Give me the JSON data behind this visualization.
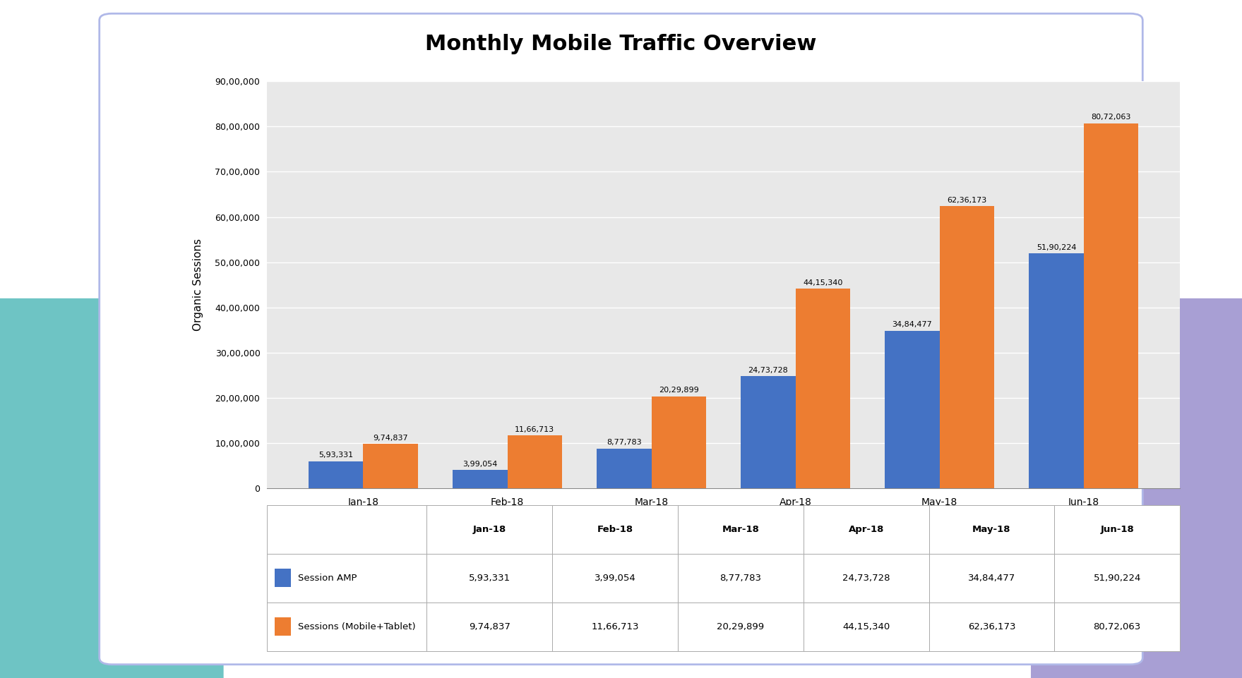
{
  "title": "Monthly Mobile Traffic Overview",
  "categories": [
    "Jan-18",
    "Feb-18",
    "Mar-18",
    "Apr-18",
    "May-18",
    "Jun-18"
  ],
  "session_amp": [
    593331,
    399054,
    877783,
    2473728,
    3484477,
    5190224
  ],
  "sessions_mobile": [
    974837,
    1166713,
    2029899,
    4415340,
    6236173,
    8072063
  ],
  "bar_color_amp": "#4472C4",
  "bar_color_mobile": "#ED7D31",
  "ylabel": "Organic Sessions",
  "ylim": [
    0,
    9000000
  ],
  "yticks": [
    0,
    1000000,
    2000000,
    3000000,
    4000000,
    5000000,
    6000000,
    7000000,
    8000000,
    9000000
  ],
  "ytick_labels": [
    "0",
    "10,00,000",
    "20,00,000",
    "30,00,000",
    "40,00,000",
    "50,00,000",
    "60,00,000",
    "70,00,000",
    "80,00,000",
    "90,00,000"
  ],
  "legend_amp": "Session AMP",
  "legend_mobile": "Sessions (Mobile+Tablet)",
  "table_amp_vals": [
    "5,93,331",
    "3,99,054",
    "8,77,783",
    "24,73,728",
    "34,84,477",
    "51,90,224"
  ],
  "table_mobile_vals": [
    "9,74,837",
    "11,66,713",
    "20,29,899",
    "44,15,340",
    "62,36,173",
    "80,72,063"
  ],
  "bar_labels_amp": [
    "5,93,331",
    "3,99,054",
    "8,77,783",
    "24,73,728",
    "34,84,477",
    "51,90,224"
  ],
  "bar_labels_mobile": [
    "9,74,837",
    "11,66,713",
    "20,29,899",
    "44,15,340",
    "62,36,173",
    "80,72,063"
  ],
  "bg_color": "#ffffff",
  "bg_plot": "#e8e8e8",
  "grid_color": "#ffffff",
  "teal_color": "#6ec4c4",
  "purple_color": "#a89fd4",
  "card_edge_color": "#b0b8e8",
  "title_fontsize": 22
}
